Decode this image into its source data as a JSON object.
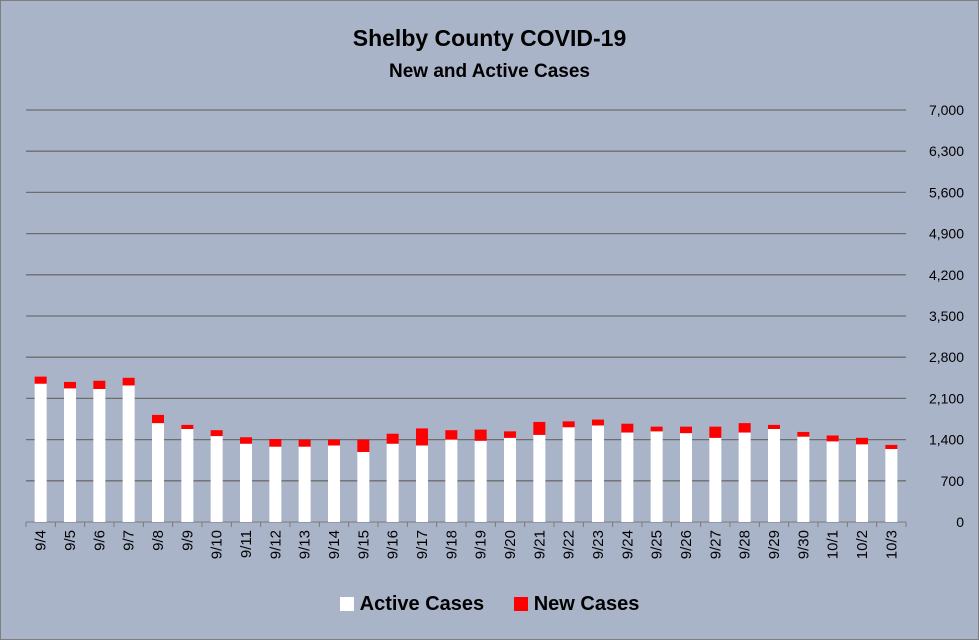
{
  "chart_data": {
    "type": "bar",
    "stacked": true,
    "title": "Shelby County COVID-19",
    "subtitle": "New and Active Cases",
    "xlabel": "",
    "ylabel": "",
    "ylim": [
      0,
      7000
    ],
    "yticks": [
      "0",
      "700",
      "1,400",
      "2,100",
      "2,800",
      "3,500",
      "4,200",
      "4,900",
      "5,600",
      "6,300",
      "7,000"
    ],
    "ytick_values": [
      0,
      700,
      1400,
      2100,
      2800,
      3500,
      4200,
      4900,
      5600,
      6300,
      7000
    ],
    "y_axis_side": "right",
    "grid": true,
    "legend_position": "bottom",
    "categories": [
      "9/4",
      "9/5",
      "9/6",
      "9/7",
      "9/8",
      "9/9",
      "9/10",
      "9/11",
      "9/12",
      "9/13",
      "9/14",
      "9/15",
      "9/16",
      "9/17",
      "9/18",
      "9/19",
      "9/20",
      "9/21",
      "9/22",
      "9/23",
      "9/24",
      "9/25",
      "9/26",
      "9/27",
      "9/28",
      "9/29",
      "9/30",
      "10/1",
      "10/2",
      "10/3"
    ],
    "series": [
      {
        "name": "Active Cases",
        "color": "#ffffff",
        "values": [
          2350,
          2270,
          2260,
          2320,
          1680,
          1580,
          1460,
          1330,
          1280,
          1280,
          1300,
          1190,
          1330,
          1300,
          1400,
          1380,
          1430,
          1480,
          1610,
          1640,
          1520,
          1540,
          1510,
          1430,
          1520,
          1580,
          1450,
          1370,
          1320,
          1240
        ]
      },
      {
        "name": "New Cases",
        "color": "#ff0000",
        "values": [
          120,
          110,
          140,
          130,
          140,
          70,
          100,
          110,
          130,
          120,
          100,
          210,
          170,
          290,
          160,
          190,
          110,
          220,
          100,
          100,
          150,
          80,
          110,
          190,
          160,
          70,
          80,
          100,
          110,
          70
        ]
      }
    ]
  }
}
